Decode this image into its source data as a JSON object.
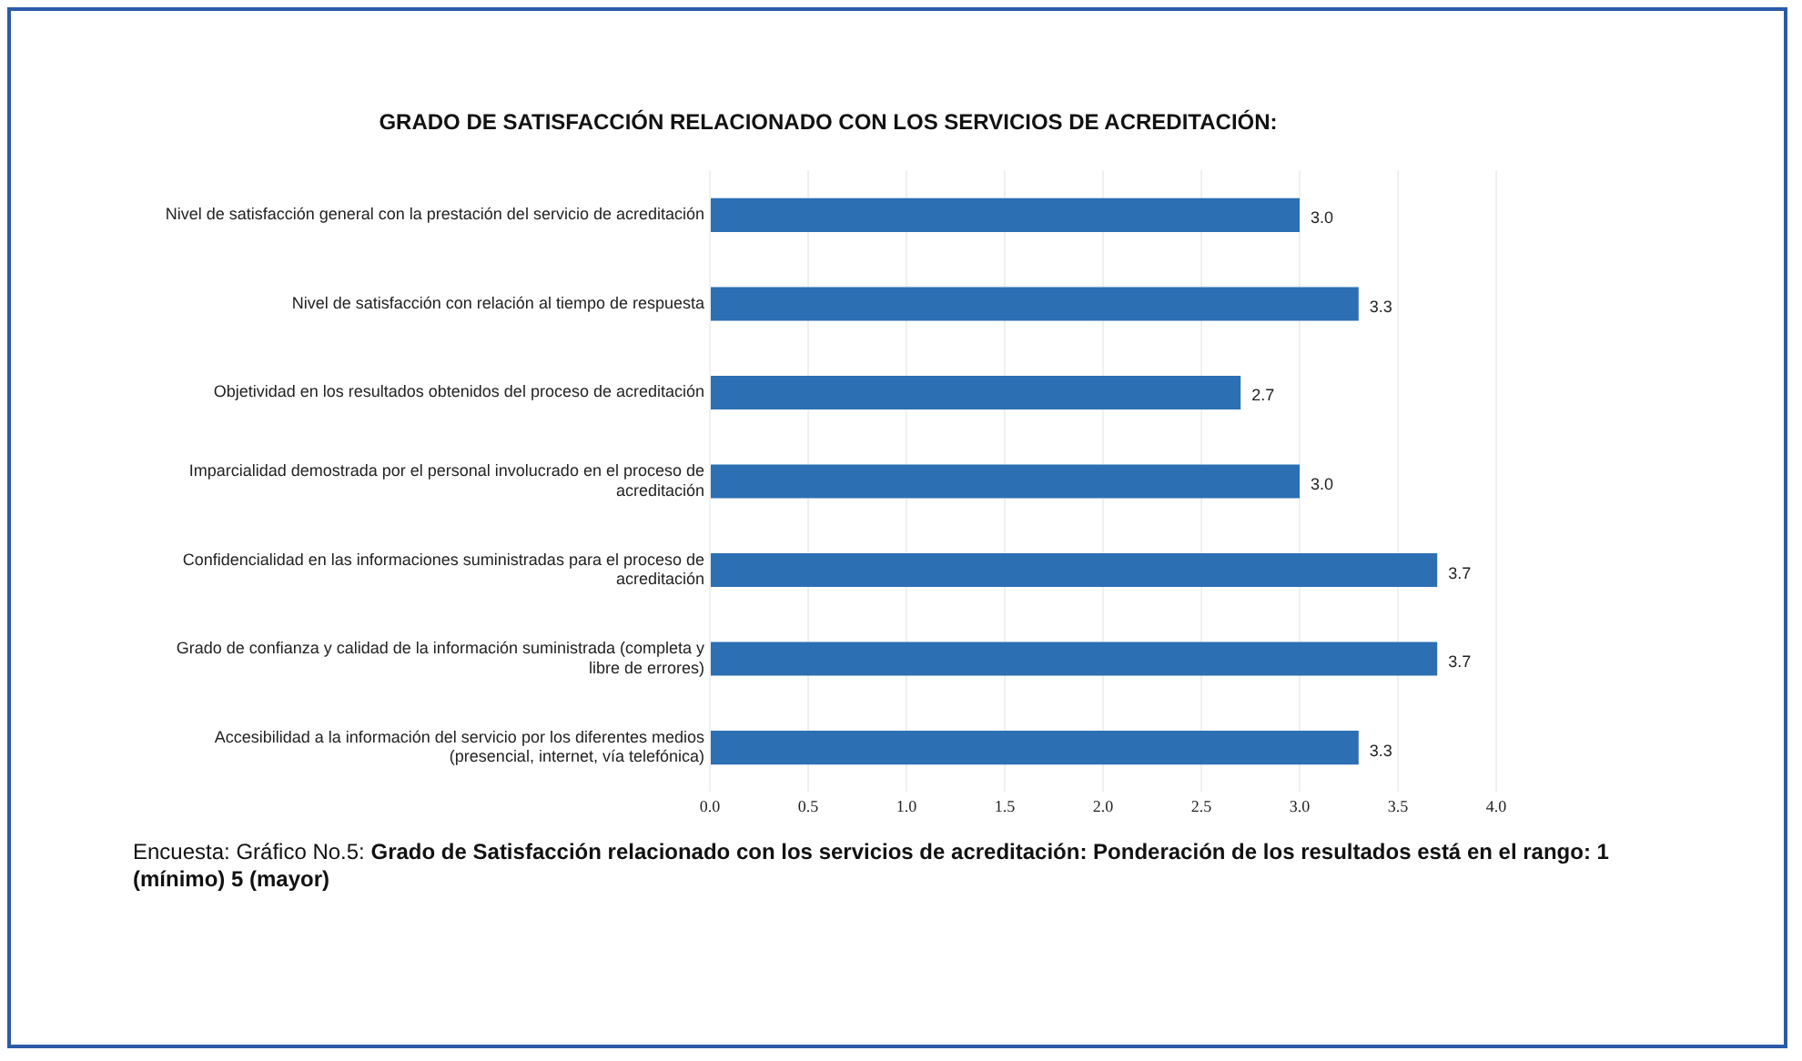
{
  "chart_data": {
    "type": "bar",
    "orientation": "horizontal",
    "title": "GRADO DE SATISFACCIÓN RELACIONADO CON LOS SERVICIOS DE ACREDITACIÓN:",
    "categories": [
      "Nivel de satisfacción general con la prestación del servicio de acreditación",
      "Nivel de satisfacción con relación al tiempo de respuesta",
      "Objetividad en los resultados obtenidos del proceso de acreditación",
      "Imparcialidad demostrada por el personal involucrado en el proceso de acreditación",
      "Confidencialidad en las informaciones suministradas para el proceso de acreditación",
      "Grado de confianza y calidad de la información suministrada (completa y libre de errores)",
      "Accesibilidad a la información del servicio por los diferentes medios (presencial, internet, vía telefónica)"
    ],
    "values": [
      3.0,
      3.3,
      2.7,
      3.0,
      3.7,
      3.7,
      3.3
    ],
    "color": "#2c6fb3",
    "value_labels": [
      "3.0",
      "3.3",
      "2.7",
      "3.0",
      "3.7",
      "3.7",
      "3.3"
    ],
    "xlim": [
      0,
      4
    ],
    "xticks": [
      {
        "value": 0,
        "label": "0.0"
      },
      {
        "value": 0.5,
        "label": "0.5"
      },
      {
        "value": 1,
        "label": "1.0"
      },
      {
        "value": 1.5,
        "label": "1.5"
      },
      {
        "value": 2,
        "label": "2.0"
      },
      {
        "value": 2.5,
        "label": "2.5"
      },
      {
        "value": 3,
        "label": "3.0"
      },
      {
        "value": 3.5,
        "label": "3.5"
      },
      {
        "value": 4,
        "label": "4.0"
      }
    ],
    "grid": "x",
    "legend": false,
    "annotations": [
      "Encuesta: Gráfico No.5:",
      "Grado de Satisfacción relacionado con los servicios de acreditación: Ponderación de los resultados está en el rango: 1 (mínimo) 5 (mayor)"
    ]
  }
}
